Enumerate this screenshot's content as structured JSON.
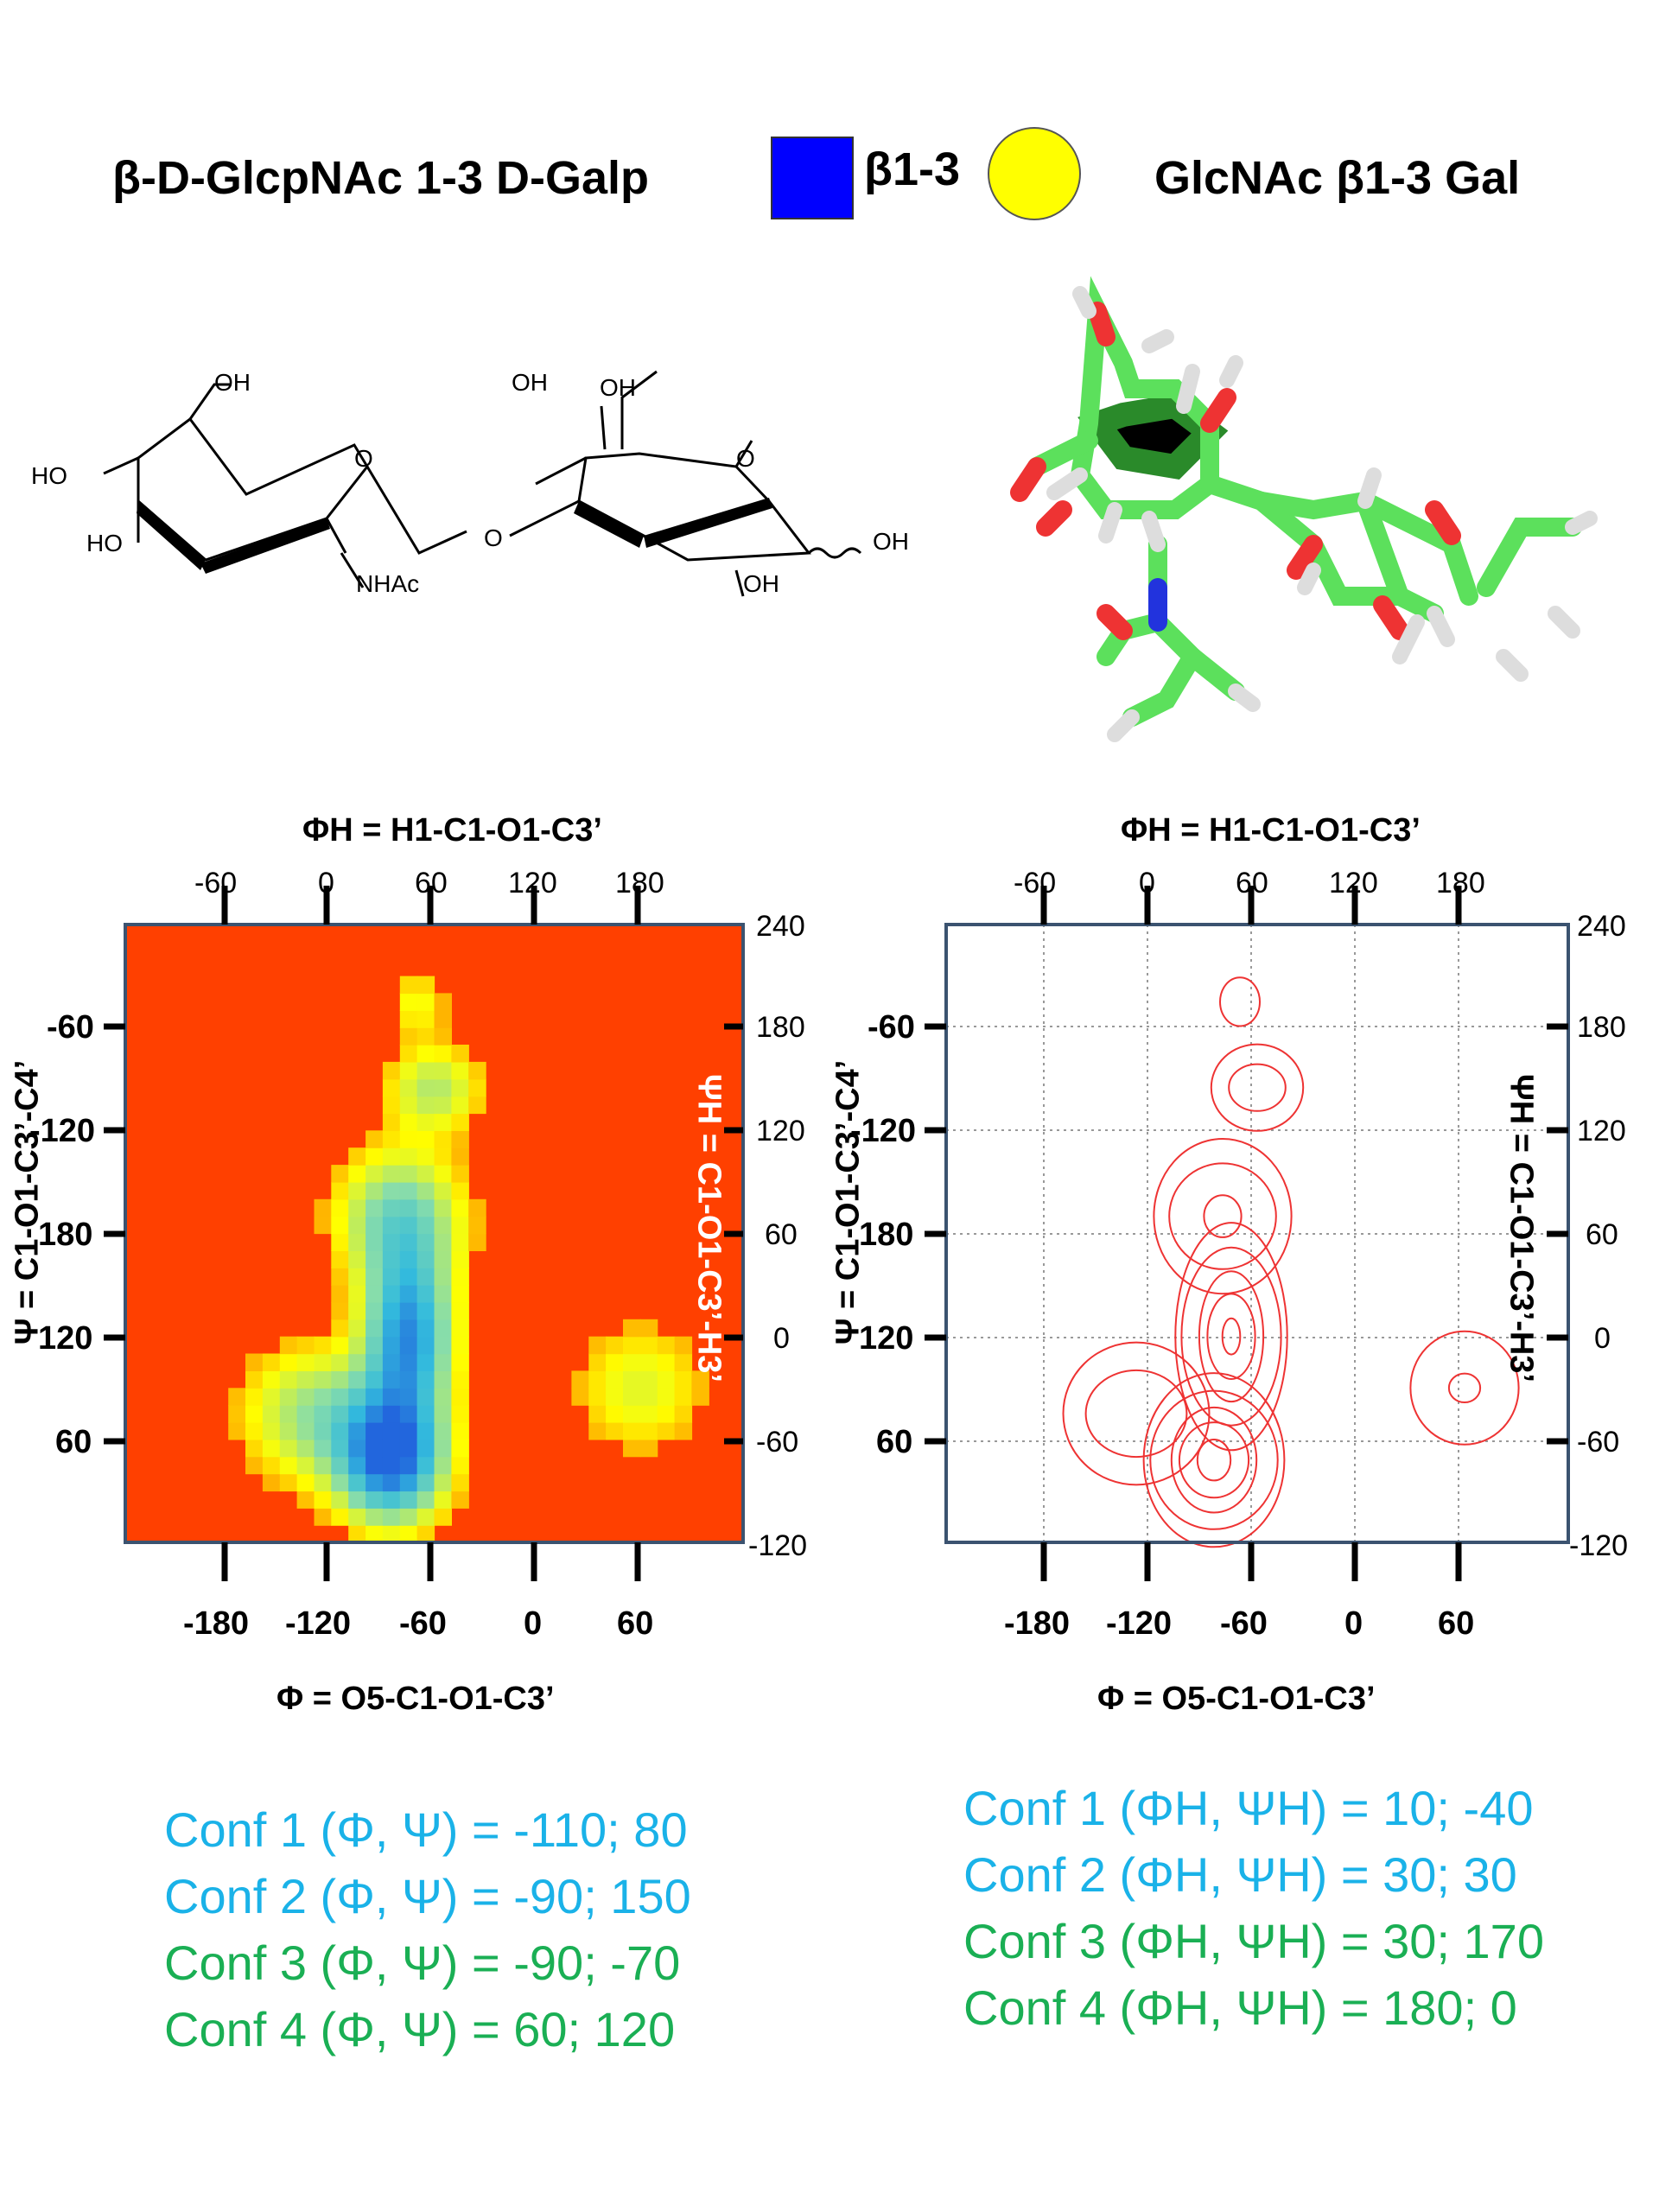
{
  "header": {
    "left_name": "β-D-GlcpNAc 1-3 D-Galp",
    "linkage": "β1-3",
    "right_name": "GlcNAc β1-3 Gal",
    "colors": {
      "glcnac_square": "#0000ff",
      "gal_circle": "#ffff00"
    }
  },
  "structure": {
    "left_ring": {
      "top_oh": "OH",
      "ho_upper": "HO",
      "ho_lower": "HO",
      "ring_o": "O",
      "nhac": "NHAc"
    },
    "bridge_o": "O",
    "right_ring": {
      "oh_top1": "OH",
      "oh_top2": "OH",
      "ring_o": "O",
      "oh_right": "OH",
      "oh_bottom": "OH"
    },
    "model_icon": "stick-model-3d"
  },
  "plots": {
    "top_axis_title": "ΦH = H1-C1-O1-C3’",
    "top_ticks": [
      "-60",
      "0",
      "60",
      "120",
      "180"
    ],
    "right_ticks": [
      "240",
      "180",
      "120",
      "60",
      "0",
      "-60",
      "-120"
    ],
    "right_axis_title": "ΨH = C1-O1-C3’-H3’",
    "left_axis_title": "Ψ = C1-O1-C3’-C4’",
    "left_ticks": [
      "-60",
      "-120",
      "180",
      "120",
      "60"
    ],
    "bottom_ticks": [
      "-180",
      "-120",
      "-60",
      "0",
      "60"
    ],
    "bottom_axis_title": "Φ = O5-C1-O1-C3’"
  },
  "chart_data": [
    {
      "type": "heatmap",
      "x_axis": {
        "label": "Φ = O5-C1-O1-C3’",
        "range": [
          -240,
          120
        ],
        "ticks": [
          -180,
          -120,
          -60,
          0,
          60
        ]
      },
      "y_axis": {
        "label": "Ψ = C1-O1-C3’-C4’",
        "range": [
          30,
          390
        ],
        "tick_labels": [
          "60",
          "120",
          "180",
          "-120",
          "-60"
        ]
      },
      "secondary_x_axis": {
        "label": "ΦH = H1-C1-O1-C3’",
        "ticks": [
          -60,
          0,
          60,
          120,
          180
        ]
      },
      "secondary_y_axis": {
        "label": "ΨH = C1-O1-C3’-H3’",
        "ticks": [
          240,
          180,
          120,
          60,
          0,
          -60,
          -120
        ]
      },
      "colormap": [
        "#ff4000",
        "#ffff00",
        "#88ddaa",
        "#33bbdd",
        "#2266dd"
      ],
      "grid": false,
      "regions": [
        {
          "phi": -85,
          "psi": 78,
          "spread_phi": 22,
          "spread_psi": 26,
          "weight": 1.0
        },
        {
          "phi": -75,
          "psi": 150,
          "spread_phi": 18,
          "spread_psi": 35,
          "weight": 0.9
        },
        {
          "phi": -80,
          "psi": 220,
          "spread_phi": 26,
          "spread_psi": 28,
          "weight": 0.55
        },
        {
          "phi": -130,
          "psi": 105,
          "spread_phi": 30,
          "spread_psi": 28,
          "weight": 0.45
        },
        {
          "phi": -60,
          "psi": 295,
          "spread_phi": 20,
          "spread_psi": 18,
          "weight": 0.4
        },
        {
          "phi": -70,
          "psi": 345,
          "spread_phi": 12,
          "spread_psi": 14,
          "weight": 0.25
        },
        {
          "phi": 60,
          "psi": 120,
          "spread_phi": 28,
          "spread_psi": 28,
          "weight": 0.3
        }
      ]
    },
    {
      "type": "contour",
      "x_axis": {
        "label": "Φ = O5-C1-O1-C3’",
        "range": [
          -240,
          120
        ],
        "ticks": [
          -180,
          -120,
          -60,
          0,
          60
        ]
      },
      "y_axis": {
        "label": "Ψ = C1-O1-C3’-C4’",
        "range": [
          30,
          390
        ],
        "tick_labels": [
          "60",
          "120",
          "180",
          "-120",
          "-60"
        ]
      },
      "secondary_x_axis": {
        "label": "ΦH = H1-C1-O1-C3’",
        "ticks": [
          -60,
          0,
          60,
          120,
          180
        ]
      },
      "secondary_y_axis": {
        "label": "ΨH = C1-O1-C3’-H3’",
        "ticks": [
          240,
          180,
          120,
          60,
          0,
          -60,
          -120
        ]
      },
      "line_color": "#ee3333",
      "grid": true
    }
  ],
  "conformations": {
    "left": [
      {
        "text": "Conf 1 (Φ, Ψ) = -110; 80",
        "color": "#1ab2e8"
      },
      {
        "text": "Conf 2 (Φ, Ψ) =  -90; 150",
        "color": "#1ab2e8"
      },
      {
        "text": "Conf 3 (Φ, Ψ) =  -90; -70",
        "color": "#1aaf54"
      },
      {
        "text": "Conf 4 (Φ, Ψ) =   60; 120",
        "color": "#1aaf54"
      }
    ],
    "right": [
      {
        "text": "Conf 1 (ΦH, ΨH) = 10; -40",
        "color": "#1ab2e8"
      },
      {
        "text": "Conf 2 (ΦH, ΨH) = 30; 30",
        "color": "#1ab2e8"
      },
      {
        "text": "Conf 3 (ΦH, ΨH) = 30; 170",
        "color": "#1aaf54"
      },
      {
        "text": "Conf 4 (ΦH, ΨH) = 180; 0",
        "color": "#1aaf54"
      }
    ]
  }
}
